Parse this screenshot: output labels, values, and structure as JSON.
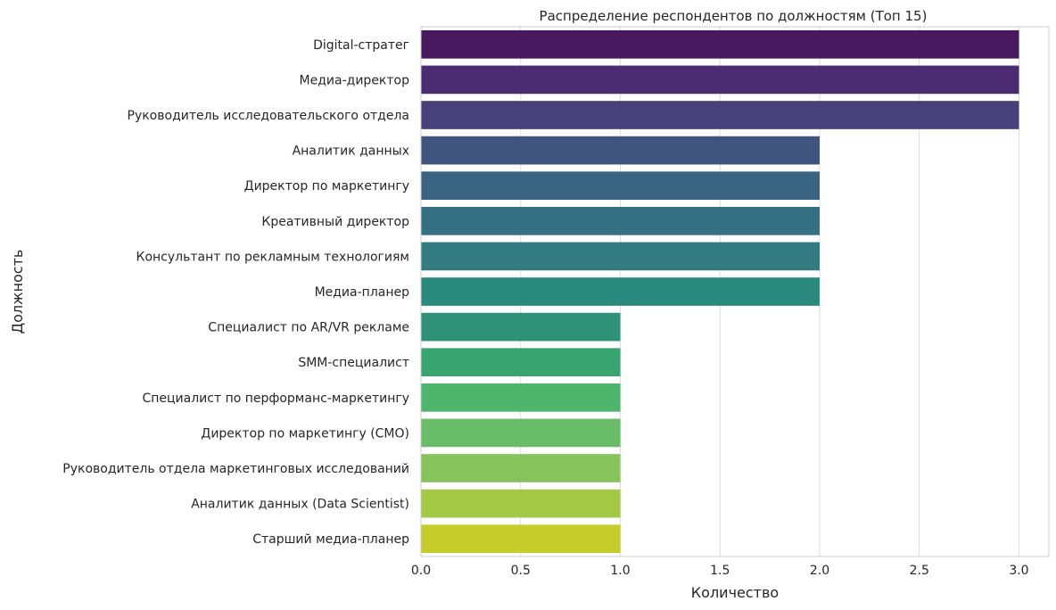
{
  "chart_data": {
    "type": "bar",
    "orientation": "horizontal",
    "title": "Распределение респондентов по должностям (Топ 15)",
    "xlabel": "Количество",
    "ylabel": "Должность",
    "xlim": [
      0,
      3.15
    ],
    "xticks": [
      "0.0",
      "0.5",
      "1.0",
      "1.5",
      "2.0",
      "2.5",
      "3.0"
    ],
    "grid": true,
    "categories": [
      "Digital-стратег",
      "Медиа-директор",
      "Руководитель исследовательского отдела",
      "Аналитик данных",
      "Директор по маркетингу",
      "Креативный директор",
      "Консультант по рекламным технологиям",
      "Медиа-планер",
      "Специалист по AR/VR рекламе",
      "SMM-специалист",
      "Специалист по перформанс-маркетингу",
      "Директор по маркетингу (CMO)",
      "Руководитель отдела маркетинговых исследований",
      "Аналитик данных (Data Scientist)",
      "Старший медиа-планер"
    ],
    "values": [
      3,
      3,
      3,
      2,
      2,
      2,
      2,
      2,
      1,
      1,
      1,
      1,
      1,
      1,
      1
    ],
    "colors": [
      "#48195e",
      "#4b2c72",
      "#46417a",
      "#40557e",
      "#3a6381",
      "#356f82",
      "#317b81",
      "#2b8a7e",
      "#2e9178",
      "#3aa471",
      "#4db56c",
      "#6abd68",
      "#87c35c",
      "#a2c844",
      "#c5cd2a"
    ]
  }
}
